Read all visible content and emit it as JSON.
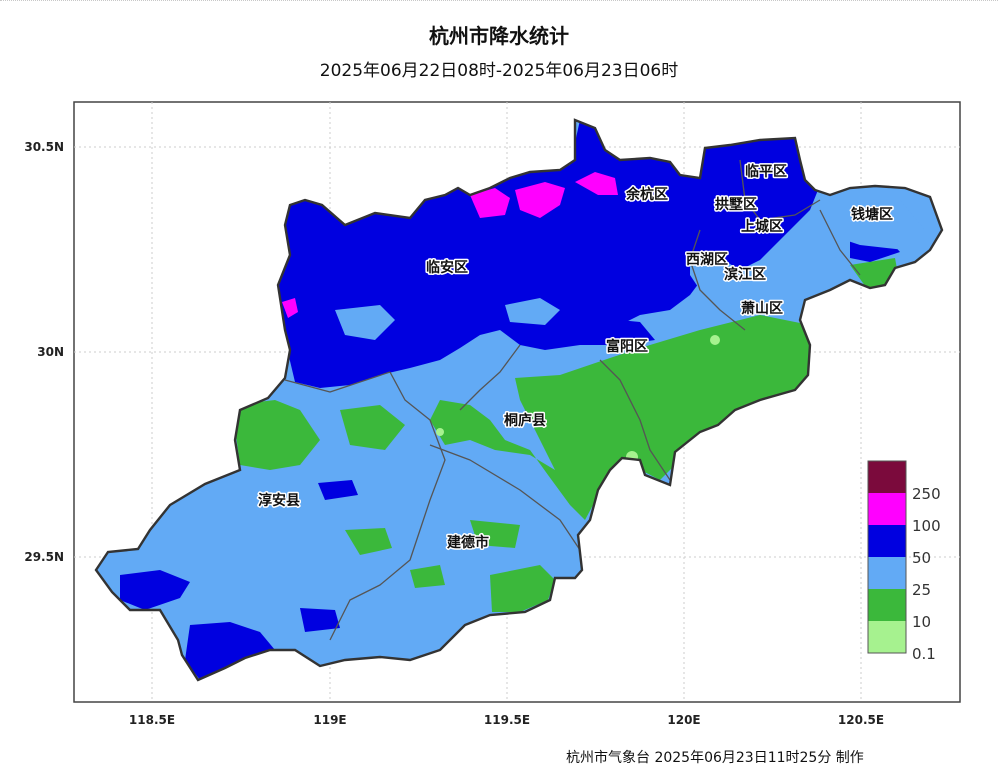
{
  "title": "杭州市降水统计",
  "subtitle": "2025年06月22日08时-2025年06月23日06时",
  "footer": "杭州市气象台 2025年06月23日11时25分 制作",
  "axes": {
    "x_ticks": [
      "118.5E",
      "119E",
      "119.5E",
      "120E",
      "120.5E"
    ],
    "y_ticks": [
      "30.5N",
      "30N",
      "29.5N"
    ]
  },
  "regions": [
    "余杭区",
    "临平区",
    "拱墅区",
    "上城区",
    "钱塘区",
    "西湖区",
    "滨江区",
    "萧山区",
    "临安区",
    "富阳区",
    "桐庐县",
    "淳安县",
    "建德市"
  ],
  "legend": {
    "levels": [
      {
        "label": "250",
        "color": "#7b0a3c"
      },
      {
        "label": "100",
        "color": "#ff00ff"
      },
      {
        "label": "50",
        "color": "#0000e0"
      },
      {
        "label": "25",
        "color": "#62aaf5"
      },
      {
        "label": "10",
        "color": "#3bb83b"
      },
      {
        "label": "0.1",
        "color": "#a6f28f"
      }
    ]
  },
  "colors": {
    "boundary": "#333333",
    "county_line": "#555555",
    "grid": "#cccccc"
  }
}
